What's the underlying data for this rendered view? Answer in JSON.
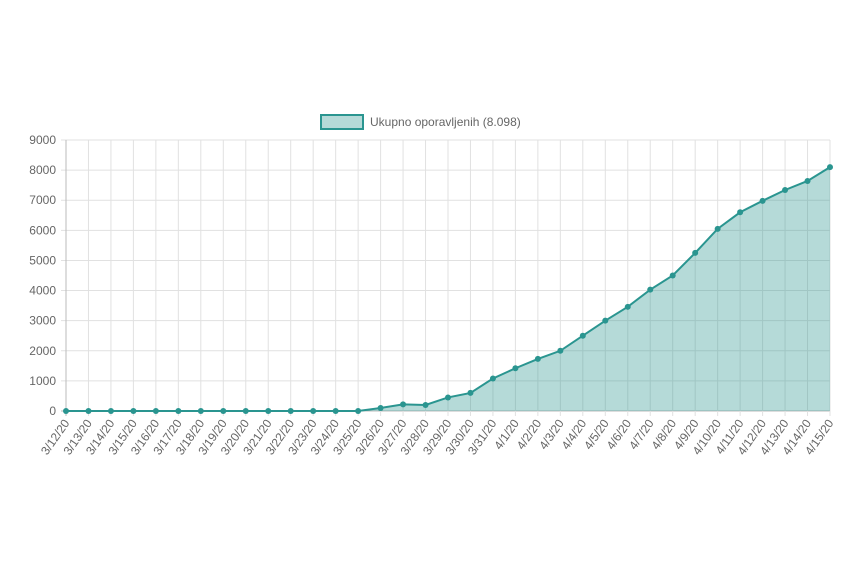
{
  "chart_data": {
    "type": "area",
    "categories": [
      "3/12/20",
      "3/13/20",
      "3/14/20",
      "3/15/20",
      "3/16/20",
      "3/17/20",
      "3/18/20",
      "3/19/20",
      "3/20/20",
      "3/21/20",
      "3/22/20",
      "3/23/20",
      "3/24/20",
      "3/25/20",
      "3/26/20",
      "3/27/20",
      "3/28/20",
      "3/29/20",
      "3/30/20",
      "3/31/20",
      "4/1/20",
      "4/2/20",
      "4/3/20",
      "4/4/20",
      "4/5/20",
      "4/6/20",
      "4/7/20",
      "4/8/20",
      "4/9/20",
      "4/10/20",
      "4/11/20",
      "4/12/20",
      "4/13/20",
      "4/14/20",
      "4/15/20"
    ],
    "series": [
      {
        "name": "Ukupno oporavljenih (8.098)",
        "color": "#2a9590",
        "values": [
          0,
          0,
          0,
          0,
          0,
          0,
          0,
          0,
          0,
          0,
          0,
          0,
          0,
          0,
          100,
          220,
          200,
          450,
          600,
          1080,
          1420,
          1730,
          2000,
          2500,
          3000,
          3460,
          4030,
          4500,
          5250,
          6050,
          6600,
          6980,
          7340,
          7640,
          8098
        ]
      }
    ],
    "ylim": [
      0,
      9000
    ],
    "yticks": [
      0,
      1000,
      2000,
      3000,
      4000,
      5000,
      6000,
      7000,
      8000,
      9000
    ],
    "grid": true,
    "legend": "top"
  }
}
